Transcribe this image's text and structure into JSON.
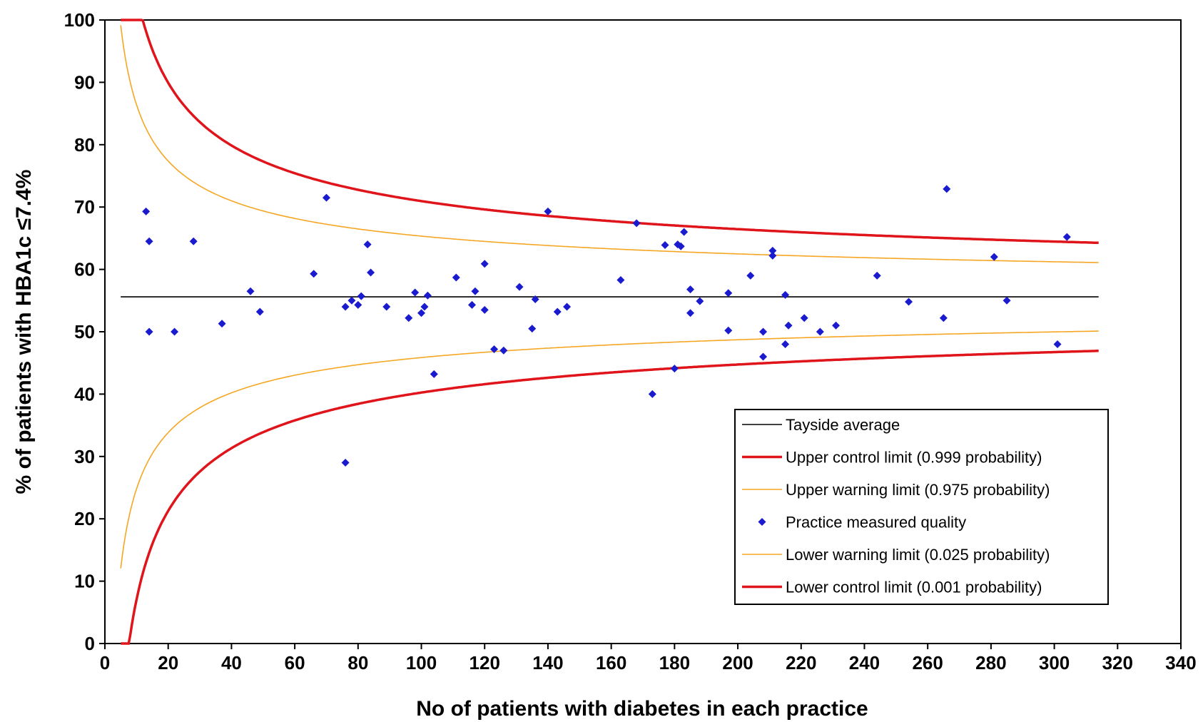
{
  "chart_data": {
    "type": "scatter",
    "xlabel": "No of patients with diabetes in each practice",
    "ylabel": "% of patients with HBA1c ≤7.4%",
    "xlim": [
      0,
      340
    ],
    "ylim": [
      0,
      100
    ],
    "x_ticks": [
      "0",
      "20",
      "40",
      "60",
      "80",
      "100",
      "120",
      "140",
      "160",
      "180",
      "200",
      "220",
      "240",
      "260",
      "280",
      "300",
      "320",
      "340"
    ],
    "y_ticks": [
      "0",
      "10",
      "20",
      "30",
      "40",
      "50",
      "60",
      "70",
      "80",
      "90",
      "100"
    ],
    "grid": false,
    "legend_position": "bottom-right",
    "average": 55.6,
    "curve_n_range": [
      5,
      314
    ],
    "colors": {
      "average": "#000000",
      "control": "#e0141b",
      "warning": "#f5a623",
      "points": "#1a1acf"
    },
    "series": [
      {
        "name": "Tayside average",
        "kind": "average"
      },
      {
        "name": "Upper control limit (0.999 probability)",
        "kind": "upper_control",
        "z": 3.09
      },
      {
        "name": "Upper warning limit (0.975 probability)",
        "kind": "upper_warning",
        "z": 1.96
      },
      {
        "name": "Practice measured quality",
        "kind": "points"
      },
      {
        "name": "Lower warning limit (0.025 probability)",
        "kind": "lower_warning",
        "z": -1.96
      },
      {
        "name": "Lower control limit (0.001 probability)",
        "kind": "lower_control",
        "z": -3.09
      }
    ],
    "points": [
      [
        13,
        69.3
      ],
      [
        14,
        64.5
      ],
      [
        14,
        50
      ],
      [
        22,
        50
      ],
      [
        28,
        64.5
      ],
      [
        37,
        51.3
      ],
      [
        46,
        56.5
      ],
      [
        49,
        53.2
      ],
      [
        66,
        59.3
      ],
      [
        70,
        71.5
      ],
      [
        76,
        54
      ],
      [
        76,
        29
      ],
      [
        78,
        55
      ],
      [
        80,
        54.3
      ],
      [
        81,
        55.7
      ],
      [
        83,
        64
      ],
      [
        84,
        59.5
      ],
      [
        89,
        54
      ],
      [
        96,
        52.2
      ],
      [
        98,
        56.3
      ],
      [
        100,
        53
      ],
      [
        101,
        54
      ],
      [
        102,
        55.8
      ],
      [
        104,
        43.2
      ],
      [
        111,
        58.7
      ],
      [
        116,
        54.3
      ],
      [
        117,
        56.5
      ],
      [
        120,
        53.5
      ],
      [
        120,
        60.9
      ],
      [
        123,
        47.2
      ],
      [
        126,
        47
      ],
      [
        131,
        57.2
      ],
      [
        135,
        50.5
      ],
      [
        136,
        55.2
      ],
      [
        140,
        69.3
      ],
      [
        143,
        53.2
      ],
      [
        146,
        54
      ],
      [
        163,
        58.3
      ],
      [
        168,
        67.4
      ],
      [
        173,
        40
      ],
      [
        177,
        63.9
      ],
      [
        180,
        44.1
      ],
      [
        181,
        64
      ],
      [
        182,
        63.7
      ],
      [
        183,
        66
      ],
      [
        185,
        53
      ],
      [
        185,
        56.8
      ],
      [
        188,
        54.9
      ],
      [
        197,
        56.2
      ],
      [
        197,
        50.2
      ],
      [
        204,
        59
      ],
      [
        208,
        50
      ],
      [
        208,
        46
      ],
      [
        211,
        62.2
      ],
      [
        211,
        63
      ],
      [
        215,
        48
      ],
      [
        215,
        55.9
      ],
      [
        216,
        51
      ],
      [
        221,
        52.2
      ],
      [
        226,
        50
      ],
      [
        231,
        51
      ],
      [
        244,
        59
      ],
      [
        254,
        54.8
      ],
      [
        265,
        52.2
      ],
      [
        266,
        72.9
      ],
      [
        281,
        62
      ],
      [
        285,
        55
      ],
      [
        301,
        48
      ],
      [
        304,
        65.2
      ]
    ]
  }
}
